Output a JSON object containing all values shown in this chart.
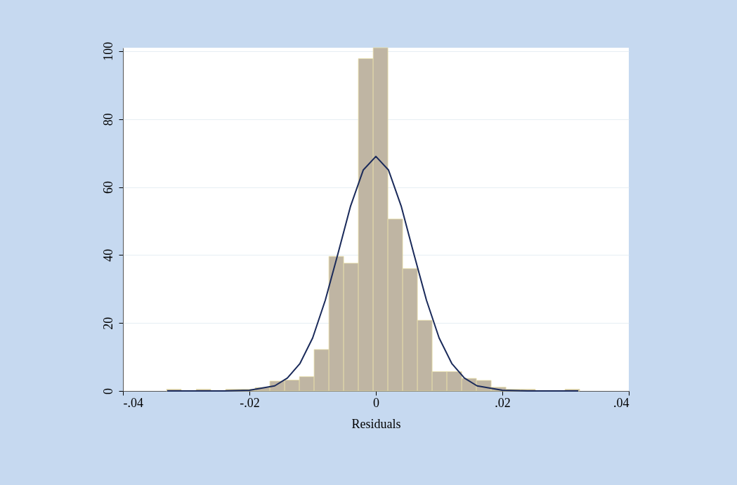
{
  "chart_data": {
    "type": "histogram",
    "xlabel": "Residuals",
    "bins": [
      -0.0331,
      -0.03077,
      -0.02843,
      -0.0261,
      -0.02377,
      -0.02143,
      -0.0191,
      -0.01677,
      -0.01443,
      -0.0121,
      -0.00977,
      -0.00743,
      -0.0051,
      -0.00277,
      -0.00043,
      0.0019,
      0.00423,
      0.00657,
      0.0089,
      0.01123,
      0.01357,
      0.0159,
      0.01823,
      0.02057,
      0.0229,
      0.02523,
      0.02757,
      0.0299,
      0.03223
    ],
    "values": [
      0.5,
      0,
      0.5,
      0,
      0.5,
      0.5,
      1,
      2.9,
      3.2,
      4.2,
      12.2,
      39.6,
      37.6,
      97.8,
      101,
      50.6,
      36,
      20.8,
      5.7,
      5.7,
      3.7,
      3.1,
      1.1,
      0.5,
      0.5,
      0,
      0,
      0.5
    ],
    "color": "#bfb5a3",
    "series": [
      {
        "type": "line",
        "color": "#1a2a5a",
        "x": [
          -0.033,
          -0.024,
          -0.02,
          -0.016,
          -0.014,
          -0.012,
          -0.01,
          -0.008,
          -0.006,
          -0.004,
          -0.002,
          0,
          0.002,
          0.004,
          0.006,
          0.008,
          0.01,
          0.012,
          0.014,
          0.016,
          0.02,
          0.024,
          0.032
        ],
        "values": [
          0,
          0,
          0.2,
          1.5,
          3.8,
          8.1,
          15.6,
          26.7,
          40.4,
          54.4,
          65,
          69,
          65,
          54.4,
          40.4,
          26.7,
          15.6,
          8.1,
          3.8,
          1.5,
          0.2,
          0,
          0
        ]
      }
    ],
    "xlim": [
      -0.04,
      0.04
    ],
    "xticks": [
      {
        "value": -0.04,
        "label": "-.04"
      },
      {
        "value": -0.02,
        "label": "-.02"
      },
      0,
      {
        "value": 0.02,
        "label": ".02"
      },
      {
        "value": 0.04,
        "label": ".04"
      }
    ],
    "ylim": [
      0,
      101
    ],
    "yticks": [
      0,
      20,
      40,
      60,
      80,
      100
    ],
    "grid": "y"
  }
}
